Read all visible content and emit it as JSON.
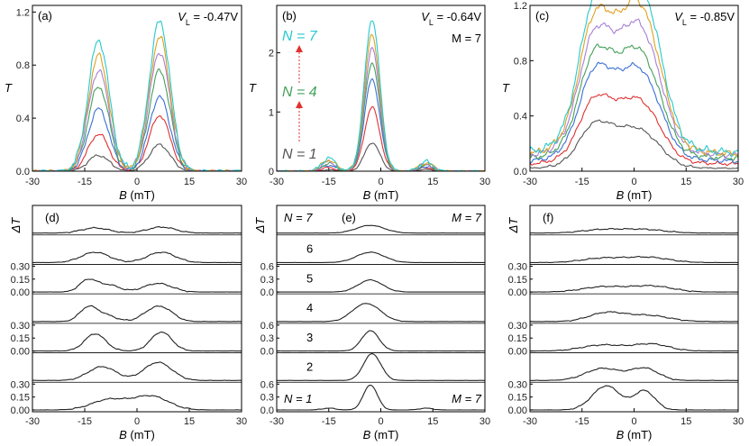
{
  "colors": [
    "#555555",
    "#e03030",
    "#3a6fd6",
    "#45a05a",
    "#a77fd6",
    "#e0a020",
    "#25c9cf"
  ],
  "chart_data": [
    {
      "id": "a",
      "type": "line",
      "panel_label": "(a)",
      "vl_label": "V",
      "vl_sub": "L",
      "vl_value": " = -0.47V",
      "xlabel_var": "B",
      "xlabel_unit": " (mT)",
      "ylabel": "T",
      "xlim": [
        -30,
        30
      ],
      "ylim": [
        0,
        1.25
      ],
      "xticks": [
        "-30",
        "-15",
        "0",
        "15",
        "30"
      ],
      "yticks": [
        "0.0",
        "0.4",
        "0.8",
        "1.2"
      ],
      "peaks": [
        [
          -11,
          3.0
        ],
        [
          6.5,
          3.0
        ]
      ],
      "series": [
        {
          "n": 1,
          "peak_values": [
            0.12,
            0.2
          ]
        },
        {
          "n": 2,
          "peak_values": [
            0.28,
            0.42
          ]
        },
        {
          "n": 3,
          "peak_values": [
            0.47,
            0.56
          ]
        },
        {
          "n": 4,
          "peak_values": [
            0.64,
            0.76
          ]
        },
        {
          "n": 5,
          "peak_values": [
            0.76,
            0.9
          ]
        },
        {
          "n": 6,
          "peak_values": [
            0.87,
            1.01
          ]
        },
        {
          "n": 7,
          "peak_values": [
            0.99,
            1.13
          ]
        }
      ]
    },
    {
      "id": "b",
      "type": "line",
      "panel_label": "(b)",
      "vl_label": "V",
      "vl_sub": "L",
      "vl_value": " = -0.64V",
      "m_label": "M = 7",
      "n_top": "N = 7",
      "n_mid": "N = 4",
      "n_bot": "N = 1",
      "xlabel_var": "B",
      "xlabel_unit": " (mT)",
      "ylabel": "T",
      "xlim": [
        -30,
        30
      ],
      "ylim": [
        0,
        2.8
      ],
      "xticks": [
        "-30",
        "-15",
        "0",
        "15",
        "30"
      ],
      "yticks": [
        "0",
        "1",
        "2"
      ],
      "peaks": [
        [
          -2.5,
          2.2
        ],
        [
          -15,
          2.0
        ],
        [
          13,
          2.0
        ]
      ],
      "series": [
        {
          "n": 1,
          "peak_values": [
            0.48,
            0.02,
            0.03
          ]
        },
        {
          "n": 2,
          "peak_values": [
            1.08,
            0.06,
            0.06
          ]
        },
        {
          "n": 3,
          "peak_values": [
            1.55,
            0.1,
            0.08
          ]
        },
        {
          "n": 4,
          "peak_values": [
            1.83,
            0.13,
            0.1
          ]
        },
        {
          "n": 5,
          "peak_values": [
            2.07,
            0.16,
            0.12
          ]
        },
        {
          "n": 6,
          "peak_values": [
            2.3,
            0.19,
            0.14
          ]
        },
        {
          "n": 7,
          "peak_values": [
            2.57,
            0.22,
            0.16
          ]
        }
      ]
    },
    {
      "id": "c",
      "type": "line",
      "panel_label": "(c)",
      "vl_label": "V",
      "vl_sub": "L",
      "vl_value": " = -0.85V",
      "xlabel_var": "B",
      "xlabel_unit": " (mT)",
      "ylabel": "T",
      "xlim": [
        -30,
        30
      ],
      "ylim": [
        0,
        1.2
      ],
      "xticks": [
        "-30",
        "-15",
        "0",
        "15",
        "30"
      ],
      "yticks": [
        "0.0",
        "0.4",
        "0.8",
        "1.2"
      ],
      "peaks": [
        [
          -9,
          6.0
        ],
        [
          3.5,
          5.0
        ]
      ],
      "series": [
        {
          "n": 1,
          "base": 0.02,
          "peak_values": [
            0.3,
            0.2
          ]
        },
        {
          "n": 2,
          "base": 0.05,
          "peak_values": [
            0.43,
            0.33
          ]
        },
        {
          "n": 3,
          "base": 0.07,
          "peak_values": [
            0.6,
            0.48
          ]
        },
        {
          "n": 4,
          "base": 0.09,
          "peak_values": [
            0.69,
            0.56
          ]
        },
        {
          "n": 5,
          "base": 0.11,
          "peak_values": [
            0.8,
            0.68
          ]
        },
        {
          "n": 6,
          "base": 0.12,
          "peak_values": [
            0.9,
            0.79
          ]
        },
        {
          "n": 7,
          "base": 0.13,
          "peak_values": [
            1.0,
            0.9
          ]
        }
      ]
    },
    {
      "id": "d",
      "type": "line",
      "panel_label": "(d)",
      "xlabel_var": "B",
      "xlabel_unit": " (mT)",
      "ylabel": "ΔT",
      "xlim": [
        -30,
        30
      ],
      "ylim_per_row": [
        0,
        0.3
      ],
      "xticks": [
        "-30",
        "-15",
        "0",
        "15",
        "30"
      ],
      "row_yticks": [
        "0.30",
        "0.15",
        "0.00"
      ],
      "rows": [
        {
          "n": 7,
          "peaks": [
            [
              -12,
              4,
              0.06
            ],
            [
              7,
              4,
              0.07
            ]
          ]
        },
        {
          "n": 6,
          "peaks": [
            [
              -12,
              4,
              0.12
            ],
            [
              7,
              4,
              0.12
            ]
          ]
        },
        {
          "n": 5,
          "peaks": [
            [
              -14,
              2.5,
              0.14
            ],
            [
              -8,
              3,
              0.08
            ],
            [
              6,
              4,
              0.1
            ]
          ]
        },
        {
          "n": 4,
          "peaks": [
            [
              -14,
              2.5,
              0.16
            ],
            [
              -9,
              3,
              0.07
            ],
            [
              4,
              3,
              0.1
            ],
            [
              8,
              3,
              0.12
            ]
          ]
        },
        {
          "n": 3,
          "peaks": [
            [
              -12,
              3,
              0.2
            ],
            [
              7,
              3,
              0.22
            ]
          ]
        },
        {
          "n": 2,
          "peaks": [
            [
              -10,
              4,
              0.16
            ],
            [
              6,
              4,
              0.21
            ]
          ]
        },
        {
          "n": 1,
          "peaks": [
            [
              -8,
              5,
              0.12
            ],
            [
              4,
              5,
              0.16
            ]
          ]
        }
      ]
    },
    {
      "id": "e",
      "type": "line",
      "panel_label": "(e)",
      "n_top": "N = 7",
      "n_bot": "N = 1",
      "m_top": "M = 7",
      "m_bot": "M = 7",
      "row_numbers": [
        "6",
        "5",
        "4",
        "3",
        "2"
      ],
      "xlabel_var": "B",
      "xlabel_unit": " (mT)",
      "ylabel": "ΔT",
      "xlim": [
        -30,
        30
      ],
      "ylim_per_row": [
        0,
        0.6
      ],
      "xticks": [
        "-30",
        "-15",
        "0",
        "15",
        "30"
      ],
      "row_yticks": [
        "0.6",
        "0.3",
        "0.0"
      ],
      "rows": [
        {
          "n": 7,
          "peaks": [
            [
              -3,
              4,
              0.18
            ]
          ]
        },
        {
          "n": 6,
          "peaks": [
            [
              -3,
              4,
              0.24
            ]
          ]
        },
        {
          "n": 5,
          "peaks": [
            [
              -3,
              3.5,
              0.28
            ]
          ]
        },
        {
          "n": 4,
          "peaks": [
            [
              -3,
              3.5,
              0.34
            ],
            [
              -7,
              3,
              0.15
            ]
          ]
        },
        {
          "n": 3,
          "peaks": [
            [
              -3,
              2.5,
              0.47
            ]
          ]
        },
        {
          "n": 2,
          "peaks": [
            [
              -2.5,
              2.5,
              0.62
            ]
          ]
        },
        {
          "n": 1,
          "peaks": [
            [
              -3,
              2,
              0.58
            ],
            [
              -15,
              2,
              0.04
            ],
            [
              13,
              2,
              0.04
            ]
          ]
        }
      ]
    },
    {
      "id": "f",
      "type": "line",
      "panel_label": "(f)",
      "xlabel_var": "B",
      "xlabel_unit": " (mT)",
      "ylabel": "ΔT",
      "xlim": [
        -30,
        30
      ],
      "ylim_per_row": [
        0,
        0.3
      ],
      "xticks": [
        "-30",
        "-15",
        "0",
        "15",
        "30"
      ],
      "row_yticks": [
        "0.30",
        "0.15",
        "0.00"
      ],
      "rows": [
        {
          "n": 7,
          "peaks": [
            [
              -9,
              6,
              0.04
            ],
            [
              3,
              6,
              0.04
            ]
          ]
        },
        {
          "n": 6,
          "peaks": [
            [
              -9,
              6,
              0.05
            ],
            [
              4,
              6,
              0.06
            ]
          ]
        },
        {
          "n": 5,
          "peaks": [
            [
              -9,
              6,
              0.06
            ],
            [
              5,
              6,
              0.07
            ]
          ]
        },
        {
          "n": 4,
          "peaks": [
            [
              -8,
              5,
              0.1
            ],
            [
              4,
              6,
              0.07
            ]
          ]
        },
        {
          "n": 3,
          "peaks": [
            [
              -9,
              6,
              0.07
            ],
            [
              5,
              5,
              0.08
            ]
          ]
        },
        {
          "n": 2,
          "peaks": [
            [
              -9,
              5,
              0.14
            ],
            [
              3,
              4,
              0.14
            ]
          ]
        },
        {
          "n": 1,
          "peaks": [
            [
              -8,
              4,
              0.28
            ],
            [
              3,
              3,
              0.22
            ]
          ]
        }
      ]
    }
  ]
}
